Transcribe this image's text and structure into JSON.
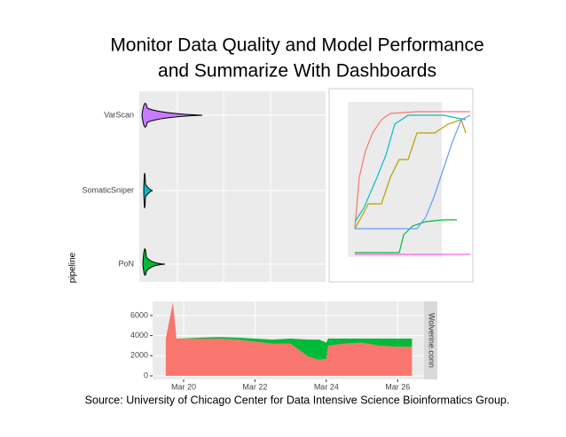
{
  "header": {
    "title_line1": "Monitor Data Quality and Model Performance",
    "title_line2": "and Summarize With Dashboards"
  },
  "violin_chart": {
    "categories": [
      "VarScan",
      "SomaticSniper",
      "PoN"
    ],
    "y_label": "pipeline"
  },
  "chart_data": {
    "type": "area",
    "strip_label": "Wolverine.conn",
    "x": [
      19.5,
      19.7,
      19.8,
      20.5,
      21,
      21.5,
      22,
      22.5,
      23,
      23.5,
      23.8,
      24,
      24.05,
      24.5,
      25,
      25.5,
      26,
      26.4
    ],
    "series": [
      {
        "color": "#f8766d",
        "values": [
          3700,
          7300,
          3700,
          3700,
          3700,
          3600,
          3400,
          3200,
          3200,
          1900,
          1600,
          1700,
          3000,
          3200,
          3300,
          3000,
          2900,
          2900
        ]
      },
      {
        "color": "#00ba38",
        "values": [
          0,
          0,
          0,
          100,
          150,
          200,
          300,
          400,
          500,
          1700,
          2000,
          1600,
          700,
          500,
          400,
          700,
          800,
          800
        ]
      }
    ],
    "xlim": [
      19.13,
      26.74
    ],
    "xticks": [
      {
        "value": 20,
        "label": "Mar 20"
      },
      {
        "value": 22,
        "label": "Mar 22"
      },
      {
        "value": 24,
        "label": "Mar 24"
      },
      {
        "value": 26,
        "label": "Mar 26"
      }
    ],
    "ylim": [
      -350,
      7400
    ],
    "yticks": [
      0,
      2000,
      4000,
      6000
    ],
    "grid": true
  },
  "footer": {
    "source": "Source: University of Chicago Center for Data Intensive Science Bioinformatics Group."
  }
}
